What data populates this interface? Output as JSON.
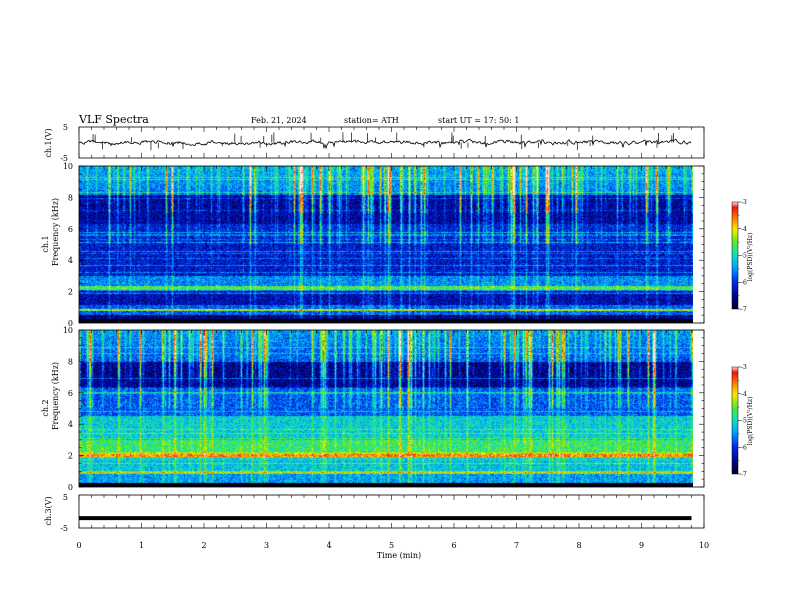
{
  "header": {
    "title": "VLF  Spectra",
    "date": "Feb. 21, 2024",
    "station": "station= ATH",
    "start_ut": "start  UT  =    17: 50: 1"
  },
  "chart_data": [
    {
      "type": "line",
      "ylabel": "ch.1(V)",
      "ylim": [
        -5,
        5
      ],
      "yticks": [
        5,
        -5
      ],
      "xlim": [
        0,
        10
      ],
      "description_values": "noisy waveform near 0 V with occasional spikes up to about +3 V",
      "series": [
        {
          "color": "#000000"
        }
      ]
    },
    {
      "type": "heatmap",
      "ylabel_line1": "ch.1",
      "ylabel_line2": "Frequency  (kHz)",
      "ylim": [
        0,
        10
      ],
      "yticks": [
        0,
        2,
        4,
        6,
        8,
        10
      ],
      "xlim": [
        0,
        9.8
      ],
      "colorbar": {
        "label": "log(PSD)(V²/Hz)",
        "range": [
          -7,
          -3
        ],
        "ticks": [
          "-3",
          "-4",
          "-5",
          "-6",
          "-7"
        ]
      }
    },
    {
      "type": "heatmap",
      "ylabel_line1": "ch.2",
      "ylabel_line2": "Frequency  (kHz)",
      "ylim": [
        0,
        10
      ],
      "yticks": [
        0,
        2,
        4,
        6,
        8,
        10
      ],
      "xlim": [
        0,
        9.8
      ],
      "colorbar": {
        "label": "log(PSD)(V²/Hz)",
        "range": [
          -7,
          -3
        ],
        "ticks": [
          "-3",
          "-4",
          "-5",
          "-6",
          "-7"
        ]
      }
    },
    {
      "type": "line",
      "ylabel": "ch.3(V)",
      "ylim": [
        -5,
        5
      ],
      "yticks": [
        5,
        -5
      ],
      "xlim": [
        0,
        10
      ],
      "series": [
        {
          "color": "#000000",
          "values_constant": -2
        }
      ]
    }
  ],
  "xaxis": {
    "label": "Time  (min)",
    "ticks": [
      "0",
      "1",
      "2",
      "3",
      "4",
      "5",
      "6",
      "7",
      "8",
      "9",
      "10"
    ]
  }
}
